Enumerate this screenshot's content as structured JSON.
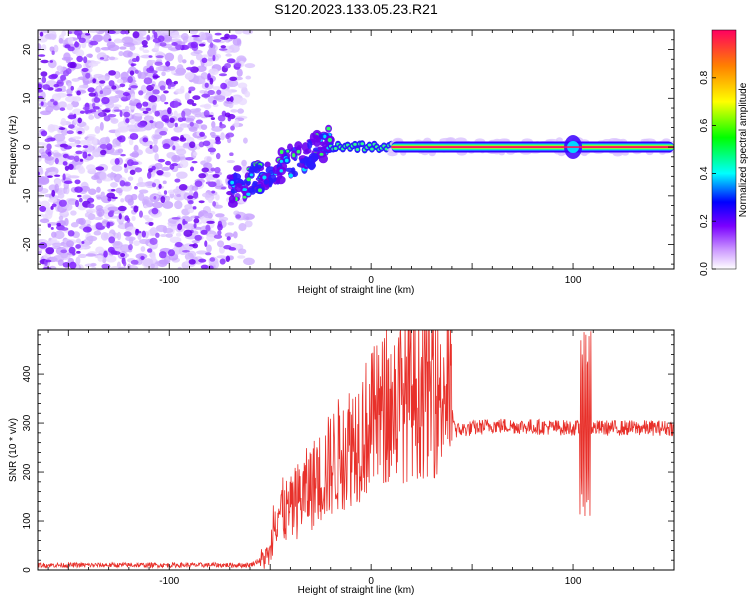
{
  "title": "S120.2023.133.05.23.R21",
  "chart_data": [
    {
      "type": "heatmap",
      "xlabel": "Height of straight line (km)",
      "ylabel": "Frequency (Hz)",
      "xlim": [
        -165,
        150
      ],
      "ylim": [
        -25,
        24
      ],
      "xticks": [
        -100,
        0,
        100
      ],
      "yticks": [
        -20,
        -10,
        0,
        10,
        20
      ],
      "colorbar": {
        "label": "Normalized spectral amplitude",
        "range": [
          0,
          1
        ],
        "ticks": [
          0.0,
          0.2,
          0.4,
          0.6,
          0.8
        ]
      },
      "regions": [
        {
          "name": "noise",
          "x": [
            -165,
            -65
          ],
          "y": [
            -25,
            24
          ],
          "amplitude": 0.25
        },
        {
          "name": "onset",
          "x": [
            -70,
            -20
          ],
          "y_start": -9,
          "y_end": 1,
          "amplitude": 0.4
        },
        {
          "name": "tone",
          "x": [
            10,
            150
          ],
          "y": 0,
          "amplitude": 1.0
        }
      ]
    },
    {
      "type": "line",
      "xlabel": "Height of straight line (km)",
      "ylabel": "SNR (10 * v/v)",
      "xlim": [
        -165,
        150
      ],
      "ylim": [
        0,
        490
      ],
      "xticks": [
        -100,
        0,
        100
      ],
      "yticks": [
        0,
        100,
        200,
        300,
        400
      ],
      "color": "#e8302a",
      "profile": [
        [
          -165,
          10
        ],
        [
          -60,
          10
        ],
        [
          -50,
          30
        ],
        [
          -48,
          120
        ],
        [
          -40,
          120
        ],
        [
          -35,
          150
        ],
        [
          -25,
          190
        ],
        [
          -15,
          240
        ],
        [
          -5,
          280
        ],
        [
          5,
          320
        ],
        [
          20,
          360
        ],
        [
          38,
          372
        ],
        [
          42,
          285
        ],
        [
          60,
          295
        ],
        [
          100,
          290
        ],
        [
          150,
          290
        ]
      ],
      "spike": {
        "x": 106,
        "min": 110,
        "max": 490
      }
    }
  ]
}
